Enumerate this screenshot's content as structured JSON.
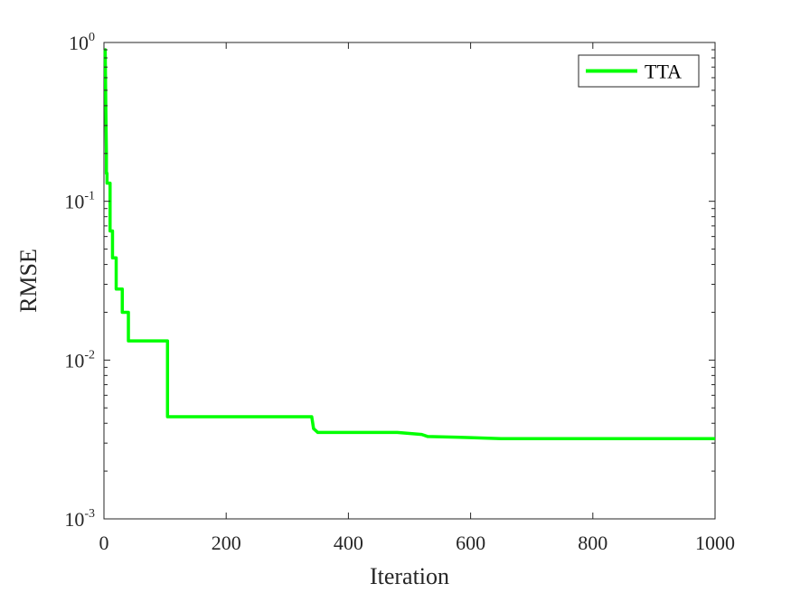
{
  "chart_data": {
    "type": "line",
    "title": "",
    "xlabel": "Iteration",
    "ylabel": "RMSE",
    "xlim": [
      0,
      1000
    ],
    "ylim": [
      0.001,
      1
    ],
    "yscale": "log",
    "grid": false,
    "legend_position": "top-right",
    "x_ticks": [
      0,
      200,
      400,
      600,
      800,
      1000
    ],
    "x_tick_labels": [
      "0",
      "200",
      "400",
      "600",
      "800",
      "1000"
    ],
    "y_ticks": [
      0.001,
      0.01,
      0.1,
      1
    ],
    "y_tick_labels": [
      {
        "base": "10",
        "exp": "-3"
      },
      {
        "base": "10",
        "exp": "-2"
      },
      {
        "base": "10",
        "exp": "-1"
      },
      {
        "base": "10",
        "exp": "0"
      }
    ],
    "series": [
      {
        "name": "TTA",
        "color": "#00ff00",
        "x": [
          1,
          2,
          3,
          3,
          4,
          4,
          5,
          5,
          10,
          10,
          14,
          14,
          20,
          20,
          30,
          30,
          40,
          40,
          47,
          47,
          104,
          104,
          340,
          343,
          350,
          480,
          520,
          530,
          600,
          650,
          800,
          1000
        ],
        "y": [
          0.9,
          0.9,
          0.4,
          0.4,
          0.2,
          0.15,
          0.15,
          0.13,
          0.13,
          0.065,
          0.065,
          0.044,
          0.044,
          0.028,
          0.028,
          0.02,
          0.02,
          0.0132,
          0.0132,
          0.0132,
          0.0132,
          0.0044,
          0.0044,
          0.0037,
          0.0035,
          0.0035,
          0.0034,
          0.0033,
          0.00325,
          0.0032,
          0.0032,
          0.0032
        ]
      }
    ]
  }
}
